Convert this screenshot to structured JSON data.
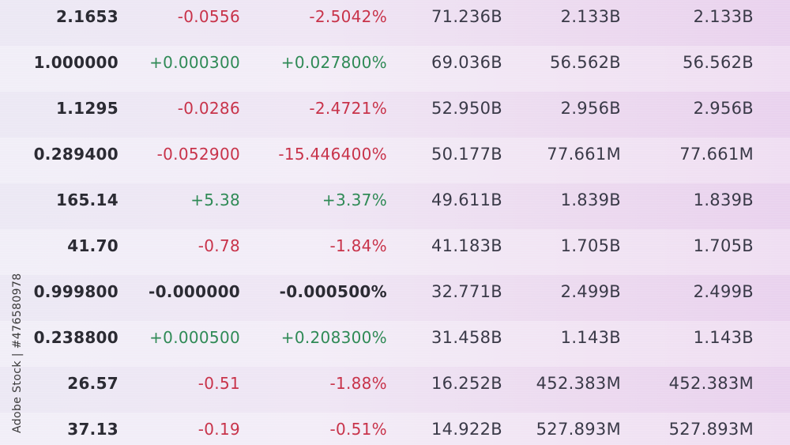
{
  "quotes_table": {
    "rows": [
      {
        "price": "2.1653",
        "change": "-0.0556",
        "change_pct": "-2.5042%",
        "direction": "neg",
        "value1": "71.236B",
        "value2": "2.133B",
        "value3": "2.133B"
      },
      {
        "price": "1.000000",
        "change": "+0.000300",
        "change_pct": "+0.027800%",
        "direction": "pos",
        "value1": "69.036B",
        "value2": "56.562B",
        "value3": "56.562B"
      },
      {
        "price": "1.1295",
        "change": "-0.0286",
        "change_pct": "-2.4721%",
        "direction": "neg",
        "value1": "52.950B",
        "value2": "2.956B",
        "value3": "2.956B"
      },
      {
        "price": "0.289400",
        "change": "-0.052900",
        "change_pct": "-15.446400%",
        "direction": "neg",
        "value1": "50.177B",
        "value2": "77.661M",
        "value3": "77.661M"
      },
      {
        "price": "165.14",
        "change": "+5.38",
        "change_pct": "+3.37%",
        "direction": "pos",
        "value1": "49.611B",
        "value2": "1.839B",
        "value3": "1.839B"
      },
      {
        "price": "41.70",
        "change": "-0.78",
        "change_pct": "-1.84%",
        "direction": "neg",
        "value1": "41.183B",
        "value2": "1.705B",
        "value3": "1.705B"
      },
      {
        "price": "0.999800",
        "change": "-0.000000",
        "change_pct": "-0.000500%",
        "direction": "zero",
        "value1": "32.771B",
        "value2": "2.499B",
        "value3": "2.499B"
      },
      {
        "price": "0.238800",
        "change": "+0.000500",
        "change_pct": "+0.208300%",
        "direction": "pos",
        "value1": "31.458B",
        "value2": "1.143B",
        "value3": "1.143B"
      },
      {
        "price": "26.57",
        "change": "-0.51",
        "change_pct": "-1.88%",
        "direction": "neg",
        "value1": "16.252B",
        "value2": "452.383M",
        "value3": "452.383M"
      },
      {
        "price": "37.13",
        "change": "-0.19",
        "change_pct": "-0.51%",
        "direction": "neg",
        "value1": "14.922B",
        "value2": "527.893M",
        "value3": "527.893M"
      }
    ]
  },
  "colors": {
    "negative": "#c8334a",
    "positive": "#2f8a56",
    "neutral": "#2b2b33"
  },
  "watermark": "Adobe Stock | #476580978"
}
